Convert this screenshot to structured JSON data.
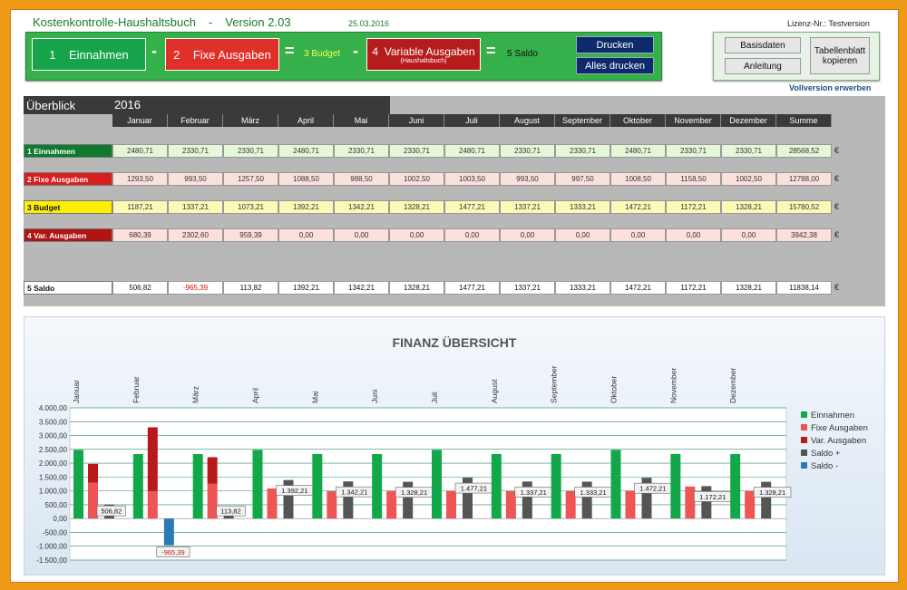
{
  "header": {
    "app_title": "Kostenkontrolle-Haushaltsbuch",
    "separator": "-",
    "version": "Version 2.03",
    "date": "25.03.2016",
    "license": "Lizenz-Nr.: Testversion"
  },
  "toolbar": {
    "einnahmen": {
      "num": "1",
      "label": "Einnahmen"
    },
    "minus1": "-",
    "fixe": {
      "num": "2",
      "label": "Fixe Ausgaben"
    },
    "equals1": "=",
    "budget_label": "3 Budget",
    "minus2": "-",
    "variable": {
      "num": "4",
      "label": "Variable Ausgaben",
      "sub": "(Haushaltsbuch)"
    },
    "equals2": "=",
    "saldo_label": "5 Saldo",
    "print": "Drucken",
    "print_all": "Alles drucken"
  },
  "side": {
    "basisdaten": "Basisdaten",
    "anleitung": "Anleitung",
    "tabellenblatt": "Tabellenblatt kopieren",
    "vollversion": "Vollversion erwerben"
  },
  "overview": {
    "title": "Überblick",
    "year": "2016",
    "currency": "€",
    "columns": [
      "Januar",
      "Februar",
      "März",
      "April",
      "Mai",
      "Juni",
      "Juli",
      "August",
      "September",
      "Oktober",
      "November",
      "Dezember",
      "Summe"
    ],
    "rows": [
      {
        "label": "1  Einnahmen",
        "values": [
          "2480,71",
          "2330,71",
          "2330,71",
          "2480,71",
          "2330,71",
          "2330,71",
          "2480,71",
          "2330,71",
          "2330,71",
          "2480,71",
          "2330,71",
          "2330,71",
          "28568,52"
        ]
      },
      {
        "label": "2  Fixe Ausgaben",
        "values": [
          "1293,50",
          "993,50",
          "1257,50",
          "1088,50",
          "988,50",
          "1002,50",
          "1003,50",
          "993,50",
          "997,50",
          "1008,50",
          "1158,50",
          "1002,50",
          "12788,00"
        ]
      },
      {
        "label": "3  Budget",
        "values": [
          "1187,21",
          "1337,21",
          "1073,21",
          "1392,21",
          "1342,21",
          "1328,21",
          "1477,21",
          "1337,21",
          "1333,21",
          "1472,21",
          "1172,21",
          "1328,21",
          "15780,52"
        ]
      },
      {
        "label": "4  Var. Ausgaben",
        "values": [
          "680,39",
          "2302,60",
          "959,39",
          "0,00",
          "0,00",
          "0,00",
          "0,00",
          "0,00",
          "0,00",
          "0,00",
          "0,00",
          "0,00",
          "3942,38"
        ]
      },
      {
        "label": "5  Saldo",
        "values": [
          "506,82",
          "-965,39",
          "113,82",
          "1392,21",
          "1342,21",
          "1328,21",
          "1477,21",
          "1337,21",
          "1333,21",
          "1472,21",
          "1172,21",
          "1328,21",
          "11838,14"
        ]
      }
    ]
  },
  "chart_data": {
    "type": "bar",
    "title": "FINANZ  ÜBERSICHT",
    "categories": [
      "Januar",
      "Februar",
      "März",
      "April",
      "Mai",
      "Juni",
      "Juli",
      "August",
      "September",
      "Oktober",
      "November",
      "Dezember"
    ],
    "y_ticks": [
      "4.000,00",
      "3.500,00",
      "3.000,00",
      "2.500,00",
      "2.000,00",
      "1.500,00",
      "1.000,00",
      "500,00",
      "0,00",
      "-500,00",
      "-1.000,00",
      "-1.500,00"
    ],
    "ylim": [
      -1500,
      4000
    ],
    "legend_position": "right",
    "series": [
      {
        "name": "Einnahmen",
        "color": "#12a84a",
        "values": [
          2480.71,
          2330.71,
          2330.71,
          2480.71,
          2330.71,
          2330.71,
          2480.71,
          2330.71,
          2330.71,
          2480.71,
          2330.71,
          2330.71
        ]
      },
      {
        "name": "Fixe Ausgaben",
        "color": "#ee5555",
        "values": [
          1293.5,
          993.5,
          1257.5,
          1088.5,
          988.5,
          1002.5,
          1003.5,
          993.5,
          997.5,
          1008.5,
          1158.5,
          1002.5
        ]
      },
      {
        "name": "Var. Ausgaben",
        "color": "#b81a1a",
        "values": [
          680.39,
          2302.6,
          959.39,
          0,
          0,
          0,
          0,
          0,
          0,
          0,
          0,
          0
        ]
      },
      {
        "name": "Saldo +",
        "color": "#555555",
        "values": [
          506.82,
          0,
          113.82,
          1392.21,
          1342.21,
          1328.21,
          1477.21,
          1337.21,
          1333.21,
          1472.21,
          1172.21,
          1328.21
        ]
      },
      {
        "name": "Saldo -",
        "color": "#2a7ab8",
        "values": [
          0,
          -965.39,
          0,
          0,
          0,
          0,
          0,
          0,
          0,
          0,
          0,
          0
        ]
      }
    ],
    "data_labels": [
      "506,82",
      "-965,39",
      "113,82",
      "1.392,21",
      "1.342,21",
      "1.328,21",
      "1.477,21",
      "1.337,21",
      "1.333,21",
      "1.472,21",
      "1.172,21",
      "1.328,21"
    ]
  }
}
